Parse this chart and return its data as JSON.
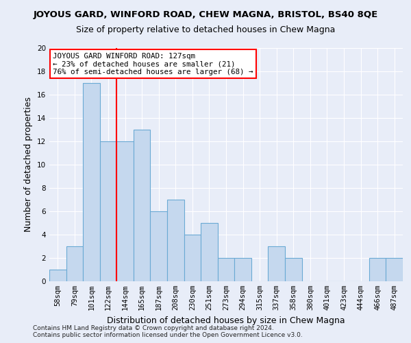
{
  "title": "JOYOUS GARD, WINFORD ROAD, CHEW MAGNA, BRISTOL, BS40 8QE",
  "subtitle": "Size of property relative to detached houses in Chew Magna",
  "xlabel": "Distribution of detached houses by size in Chew Magna",
  "ylabel": "Number of detached properties",
  "footnote1": "Contains HM Land Registry data © Crown copyright and database right 2024.",
  "footnote2": "Contains public sector information licensed under the Open Government Licence v3.0.",
  "bar_labels": [
    "58sqm",
    "79sqm",
    "101sqm",
    "122sqm",
    "144sqm",
    "165sqm",
    "187sqm",
    "208sqm",
    "230sqm",
    "251sqm",
    "273sqm",
    "294sqm",
    "315sqm",
    "337sqm",
    "358sqm",
    "380sqm",
    "401sqm",
    "423sqm",
    "444sqm",
    "466sqm",
    "487sqm"
  ],
  "bar_values": [
    1,
    3,
    17,
    12,
    12,
    13,
    6,
    7,
    4,
    5,
    2,
    2,
    0,
    3,
    2,
    0,
    0,
    0,
    0,
    2,
    2
  ],
  "bar_color": "#c5d8ee",
  "bar_edgecolor": "#6aaad4",
  "vline_index": 3,
  "vline_color": "red",
  "ylim": [
    0,
    20
  ],
  "yticks": [
    0,
    2,
    4,
    6,
    8,
    10,
    12,
    14,
    16,
    18,
    20
  ],
  "annotation_text": "JOYOUS GARD WINFORD ROAD: 127sqm\n← 23% of detached houses are smaller (21)\n76% of semi-detached houses are larger (68) →",
  "annotation_box_color": "white",
  "annotation_box_edgecolor": "red",
  "bg_color": "#e8edf8",
  "plot_bg_color": "#e8edf8",
  "grid_color": "#ffffff",
  "title_fontsize": 9.5,
  "subtitle_fontsize": 9.0,
  "ylabel_fontsize": 9,
  "xlabel_fontsize": 9,
  "tick_fontsize": 7.5,
  "annotation_fontsize": 7.8,
  "footnote_fontsize": 6.5
}
